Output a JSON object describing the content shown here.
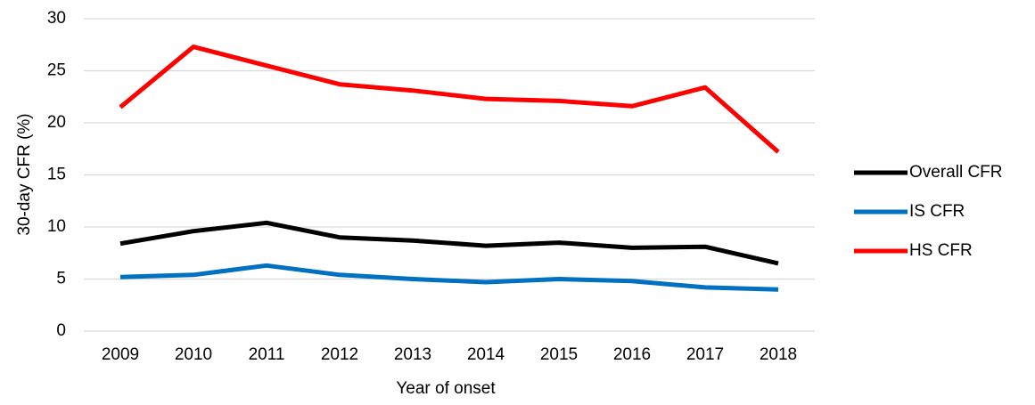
{
  "chart_data": {
    "type": "line",
    "x_label": "Year of onset",
    "y_label": "30-day CFR (%)",
    "categories": [
      "2009",
      "2010",
      "2011",
      "2012",
      "2013",
      "2014",
      "2015",
      "2016",
      "2017",
      "2018"
    ],
    "series": [
      {
        "name": "Overall CFR",
        "color": "#000000",
        "values": [
          8.4,
          9.6,
          10.4,
          9.0,
          8.7,
          8.2,
          8.5,
          8.0,
          8.1,
          6.5
        ]
      },
      {
        "name": "IS CFR",
        "color": "#0070c0",
        "values": [
          5.2,
          5.4,
          6.3,
          5.4,
          5.0,
          4.7,
          5.0,
          4.8,
          4.2,
          4.0
        ]
      },
      {
        "name": "HS CFR",
        "color": "#ff0000",
        "values": [
          21.5,
          27.3,
          25.5,
          23.7,
          23.1,
          22.3,
          22.1,
          21.6,
          23.4,
          17.2
        ]
      }
    ],
    "ylim": [
      0,
      30
    ],
    "yticks": [
      0,
      5,
      10,
      15,
      20,
      25,
      30
    ],
    "grid": true,
    "legend": "right"
  }
}
